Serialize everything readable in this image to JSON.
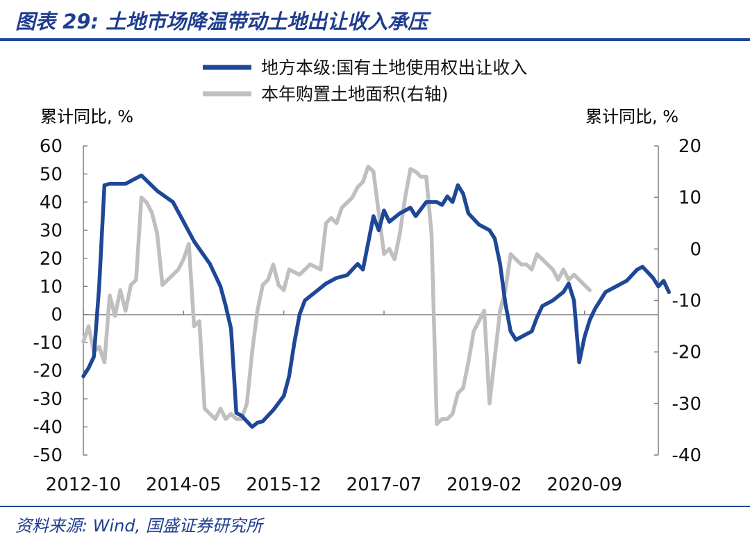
{
  "header": {
    "title": "图表 29:  土地市场降温带动土地出让收入承压"
  },
  "footer": {
    "source": "资料来源:  Wind, 国盛证券研究所"
  },
  "colors": {
    "accent": "#1f4797",
    "series_dark": "#1f4797",
    "series_gray": "#bfbfbf",
    "axis": "#7f7f7f"
  },
  "chart_data": {
    "type": "line",
    "title": "",
    "left_axis": {
      "label": "累计同比, %",
      "ylim": [
        -50,
        60
      ],
      "ticks": [
        60,
        50,
        40,
        30,
        20,
        10,
        0,
        -10,
        -20,
        -30,
        -40,
        -50
      ]
    },
    "right_axis": {
      "label": "累计同比, %",
      "ylim": [
        -40,
        20
      ],
      "ticks": [
        20,
        10,
        0,
        -10,
        -20,
        -30,
        -40
      ]
    },
    "x_ticks": [
      "2012-10",
      "2014-05",
      "2015-12",
      "2017-07",
      "2019-02",
      "2020-09"
    ],
    "x_range": [
      "2012-10",
      "2021-11"
    ],
    "legend_position": "top-center",
    "grid": false,
    "series": [
      {
        "name": "地方本级:国有土地使用权出让收入",
        "axis": "left",
        "color": "#1f4797",
        "points": [
          [
            "2012-10",
            -22
          ],
          [
            "2012-11",
            -19
          ],
          [
            "2012-12",
            -15
          ],
          [
            "2013-01",
            10
          ],
          [
            "2013-02",
            46
          ],
          [
            "2013-03",
            46.5
          ],
          [
            "2013-06",
            46.5
          ],
          [
            "2013-09",
            49.5
          ],
          [
            "2013-12",
            44
          ],
          [
            "2014-03",
            40
          ],
          [
            "2014-05",
            33
          ],
          [
            "2014-07",
            26
          ],
          [
            "2014-10",
            18
          ],
          [
            "2014-12",
            10
          ],
          [
            "2015-01",
            3
          ],
          [
            "2015-02",
            -5
          ],
          [
            "2015-03",
            -35
          ],
          [
            "2015-04",
            -36
          ],
          [
            "2015-05",
            -38
          ],
          [
            "2015-06",
            -40
          ],
          [
            "2015-07",
            -38.5
          ],
          [
            "2015-08",
            -38
          ],
          [
            "2015-10",
            -34
          ],
          [
            "2015-12",
            -29
          ],
          [
            "2016-01",
            -22
          ],
          [
            "2016-02",
            -10
          ],
          [
            "2016-03",
            0
          ],
          [
            "2016-04",
            5
          ],
          [
            "2016-06",
            8
          ],
          [
            "2016-08",
            11
          ],
          [
            "2016-10",
            13
          ],
          [
            "2016-12",
            14
          ],
          [
            "2017-02",
            18
          ],
          [
            "2017-03",
            16
          ],
          [
            "2017-05",
            35
          ],
          [
            "2017-06",
            30
          ],
          [
            "2017-07",
            37
          ],
          [
            "2017-08",
            33
          ],
          [
            "2017-10",
            36
          ],
          [
            "2017-12",
            38
          ],
          [
            "2018-01",
            35
          ],
          [
            "2018-03",
            40
          ],
          [
            "2018-05",
            40
          ],
          [
            "2018-06",
            39
          ],
          [
            "2018-07",
            42
          ],
          [
            "2018-08",
            40
          ],
          [
            "2018-09",
            46
          ],
          [
            "2018-10",
            43
          ],
          [
            "2018-11",
            36
          ],
          [
            "2018-12",
            34
          ],
          [
            "2019-01",
            32
          ],
          [
            "2019-03",
            30
          ],
          [
            "2019-04",
            27
          ],
          [
            "2019-05",
            18
          ],
          [
            "2019-06",
            4
          ],
          [
            "2019-07",
            -6
          ],
          [
            "2019-08",
            -9
          ],
          [
            "2019-09",
            -8
          ],
          [
            "2019-10",
            -7
          ],
          [
            "2019-11",
            -6
          ],
          [
            "2019-12",
            -1
          ],
          [
            "2020-01",
            3
          ],
          [
            "2020-03",
            5
          ],
          [
            "2020-05",
            8
          ],
          [
            "2020-06",
            11
          ],
          [
            "2020-07",
            5
          ],
          [
            "2020-08",
            -17
          ],
          [
            "2020-09",
            -8
          ],
          [
            "2020-10",
            -2
          ],
          [
            "2020-11",
            2
          ],
          [
            "2020-12",
            5
          ],
          [
            "2021-01",
            8
          ],
          [
            "2021-02",
            9
          ],
          [
            "2021-03",
            10
          ],
          [
            "2021-04",
            11
          ],
          [
            "2021-05",
            12
          ],
          [
            "2021-06",
            14
          ],
          [
            "2021-07",
            16
          ],
          [
            "2021-08",
            17
          ],
          [
            "2021-09",
            15
          ],
          [
            "2021-10",
            13
          ],
          [
            "2021-11",
            10
          ],
          [
            "2021-12",
            12
          ],
          [
            "2022-01",
            8
          ]
        ]
      },
      {
        "name": "本年购置土地面积(右轴)",
        "axis": "right",
        "color": "#bfbfbf",
        "points": [
          [
            "2012-10",
            -18
          ],
          [
            "2012-11",
            -15
          ],
          [
            "2012-12",
            -20
          ],
          [
            "2013-01",
            -19
          ],
          [
            "2013-02",
            -22
          ],
          [
            "2013-03",
            -9
          ],
          [
            "2013-04",
            -13
          ],
          [
            "2013-05",
            -8
          ],
          [
            "2013-06",
            -12
          ],
          [
            "2013-07",
            -7
          ],
          [
            "2013-08",
            -6
          ],
          [
            "2013-09",
            10
          ],
          [
            "2013-10",
            9
          ],
          [
            "2013-11",
            7
          ],
          [
            "2013-12",
            3
          ],
          [
            "2014-01",
            -7
          ],
          [
            "2014-02",
            -6
          ],
          [
            "2014-03",
            -5
          ],
          [
            "2014-04",
            -4
          ],
          [
            "2014-05",
            -2
          ],
          [
            "2014-06",
            1
          ],
          [
            "2014-07",
            -15
          ],
          [
            "2014-08",
            -14
          ],
          [
            "2014-09",
            -31
          ],
          [
            "2014-10",
            -32
          ],
          [
            "2014-11",
            -33
          ],
          [
            "2014-12",
            -31
          ],
          [
            "2015-01",
            -33
          ],
          [
            "2015-02",
            -32
          ],
          [
            "2015-03",
            -33
          ],
          [
            "2015-04",
            -33
          ],
          [
            "2015-05",
            -30
          ],
          [
            "2015-06",
            -20
          ],
          [
            "2015-07",
            -12
          ],
          [
            "2015-08",
            -7
          ],
          [
            "2015-09",
            -6
          ],
          [
            "2015-10",
            -3
          ],
          [
            "2015-11",
            -7
          ],
          [
            "2015-12",
            -8
          ],
          [
            "2016-01",
            -4
          ],
          [
            "2016-03",
            -5
          ],
          [
            "2016-05",
            -3
          ],
          [
            "2016-07",
            -4
          ],
          [
            "2016-08",
            5
          ],
          [
            "2016-09",
            6
          ],
          [
            "2016-10",
            5
          ],
          [
            "2016-11",
            8
          ],
          [
            "2016-12",
            9
          ],
          [
            "2017-01",
            10
          ],
          [
            "2017-02",
            12
          ],
          [
            "2017-03",
            13
          ],
          [
            "2017-04",
            16
          ],
          [
            "2017-05",
            15
          ],
          [
            "2017-06",
            7
          ],
          [
            "2017-07",
            -1
          ],
          [
            "2017-08",
            0
          ],
          [
            "2017-09",
            -2
          ],
          [
            "2017-10",
            3
          ],
          [
            "2017-11",
            10
          ],
          [
            "2017-12",
            15.5
          ],
          [
            "2018-01",
            15
          ],
          [
            "2018-02",
            14
          ],
          [
            "2018-03",
            14
          ],
          [
            "2018-04",
            3
          ],
          [
            "2018-05",
            -34
          ],
          [
            "2018-06",
            -33
          ],
          [
            "2018-07",
            -33
          ],
          [
            "2018-08",
            -32
          ],
          [
            "2018-09",
            -28
          ],
          [
            "2018-10",
            -27
          ],
          [
            "2018-11",
            -22
          ],
          [
            "2018-12",
            -16
          ],
          [
            "2019-01",
            -14
          ],
          [
            "2019-02",
            -12
          ],
          [
            "2019-03",
            -30
          ],
          [
            "2019-04",
            -21
          ],
          [
            "2019-05",
            -12
          ],
          [
            "2019-06",
            -8
          ],
          [
            "2019-07",
            -1
          ],
          [
            "2019-08",
            -2
          ],
          [
            "2019-09",
            -3
          ],
          [
            "2019-10",
            -3
          ],
          [
            "2019-11",
            -4
          ],
          [
            "2019-12",
            -1
          ],
          [
            "2020-01",
            -2
          ],
          [
            "2020-02",
            -3
          ],
          [
            "2020-03",
            -4
          ],
          [
            "2020-04",
            -6
          ],
          [
            "2020-05",
            -4
          ],
          [
            "2020-06",
            -6
          ],
          [
            "2020-07",
            -5
          ],
          [
            "2020-08",
            -6
          ],
          [
            "2020-09",
            -7
          ],
          [
            "2020-10",
            -8
          ]
        ]
      }
    ]
  }
}
